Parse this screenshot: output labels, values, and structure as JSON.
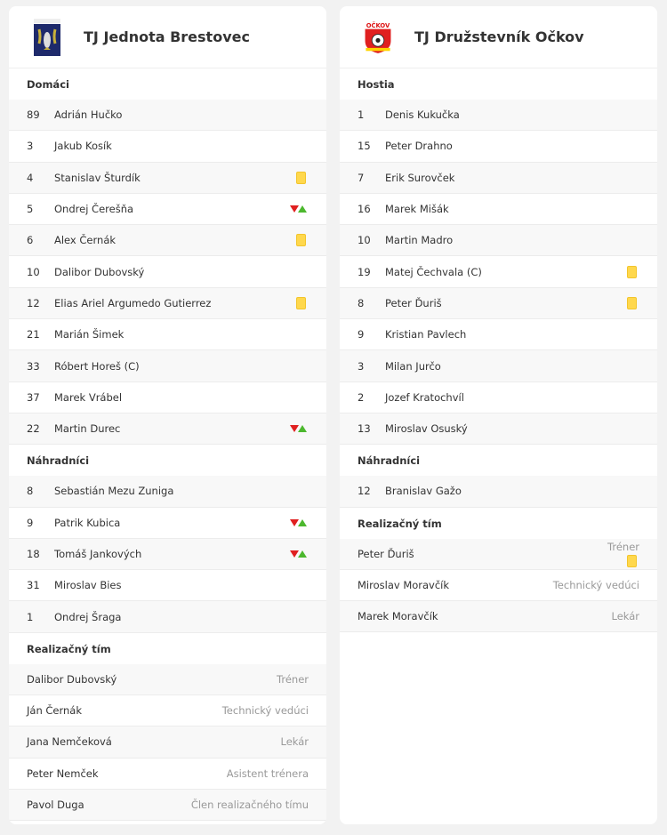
{
  "home": {
    "team": "TJ Jednota Brestovec",
    "logo": "fish-crest-logo",
    "sections": [
      {
        "title": "Domáci",
        "players": [
          {
            "num": "89",
            "name": "Adrián Hučko"
          },
          {
            "num": "3",
            "name": "Jakub Kosík"
          },
          {
            "num": "4",
            "name": "Stanislav Šturdík",
            "event": "yellow-card"
          },
          {
            "num": "5",
            "name": "Ondrej Čerešňa",
            "event": "substitution"
          },
          {
            "num": "6",
            "name": "Alex Černák",
            "event": "yellow-card"
          },
          {
            "num": "10",
            "name": "Dalibor Dubovský"
          },
          {
            "num": "12",
            "name": "Elias Ariel Argumedo Gutierrez",
            "event": "yellow-card"
          },
          {
            "num": "21",
            "name": "Marián Šimek"
          },
          {
            "num": "33",
            "name": "Róbert Horeš (C)"
          },
          {
            "num": "37",
            "name": "Marek Vrábel"
          },
          {
            "num": "22",
            "name": "Martin Durec",
            "event": "substitution"
          }
        ]
      },
      {
        "title": "Náhradníci",
        "players": [
          {
            "num": "8",
            "name": "Sebastián Mezu Zuniga"
          },
          {
            "num": "9",
            "name": "Patrik Kubica",
            "event": "substitution"
          },
          {
            "num": "18",
            "name": "Tomáš Jankových",
            "event": "substitution"
          },
          {
            "num": "31",
            "name": "Miroslav Bies"
          },
          {
            "num": "1",
            "name": "Ondrej Šraga"
          }
        ]
      }
    ],
    "staff": {
      "title": "Realizačný tím",
      "members": [
        {
          "name": "Dalibor Dubovský",
          "role": "Tréner"
        },
        {
          "name": "Ján Černák",
          "role": "Technický vedúci"
        },
        {
          "name": "Jana Nemčeková",
          "role": "Lekár"
        },
        {
          "name": "Peter Nemček",
          "role": "Asistent trénera"
        },
        {
          "name": "Pavol Duga",
          "role": "Člen realizačného tímu"
        }
      ]
    }
  },
  "away": {
    "team": "TJ Družstevník Očkov",
    "logo": "ockov-ball-logo",
    "logo_text": "OČKOV",
    "sections": [
      {
        "title": "Hostia",
        "players": [
          {
            "num": "1",
            "name": "Denis Kukučka"
          },
          {
            "num": "15",
            "name": "Peter Drahno"
          },
          {
            "num": "7",
            "name": "Erik Surovček"
          },
          {
            "num": "16",
            "name": "Marek Mišák"
          },
          {
            "num": "10",
            "name": "Martin Madro"
          },
          {
            "num": "19",
            "name": "Matej Čechvala (C)",
            "event": "yellow-card"
          },
          {
            "num": "8",
            "name": "Peter Ďuriš",
            "event": "yellow-card"
          },
          {
            "num": "9",
            "name": "Kristian Pavlech"
          },
          {
            "num": "3",
            "name": "Milan Jurčo"
          },
          {
            "num": "2",
            "name": "Jozef Kratochvíl"
          },
          {
            "num": "13",
            "name": "Miroslav Osuský"
          }
        ]
      },
      {
        "title": "Náhradníci",
        "players": [
          {
            "num": "12",
            "name": "Branislav Gažo"
          }
        ]
      }
    ],
    "staff": {
      "title": "Realizačný tím",
      "members": [
        {
          "name": "Peter Ďuriš",
          "role": "Tréner",
          "event": "yellow-card"
        },
        {
          "name": "Miroslav Moravčík",
          "role": "Technický vedúci"
        },
        {
          "name": "Marek Moravčík",
          "role": "Lekár"
        }
      ]
    }
  },
  "colors": {
    "yellow_card": "#ffd84d",
    "sub_out": "#e02020",
    "sub_in": "#4cb82e"
  }
}
